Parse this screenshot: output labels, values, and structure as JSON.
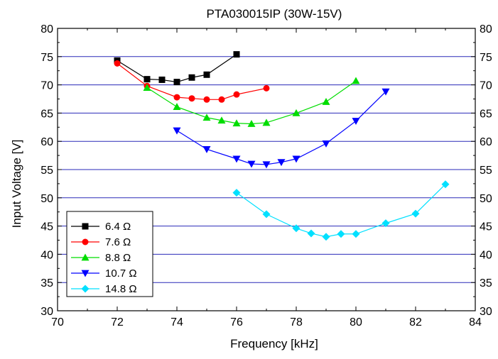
{
  "chart_data": {
    "type": "line",
    "title": "PTA030015IP (30W-15V)",
    "xlabel": "Frequency [kHz]",
    "ylabel": "Input Voltage [V]",
    "xlim": [
      70,
      84
    ],
    "ylim": [
      30,
      80
    ],
    "x_ticks": [
      "70",
      "72",
      "74",
      "76",
      "78",
      "80",
      "82",
      "84"
    ],
    "y_ticks": [
      "30",
      "35",
      "40",
      "45",
      "50",
      "55",
      "60",
      "65",
      "70",
      "75",
      "80"
    ],
    "y_ticks_right": [
      "30",
      "35",
      "40",
      "45",
      "50",
      "55",
      "60",
      "65",
      "70",
      "75",
      "80"
    ],
    "grid": "horizontal lines at each y tick (blue)",
    "legend_position": "bottom-left",
    "series": [
      {
        "name": "6.4  Ω",
        "color": "#000000",
        "marker": "square",
        "points": [
          [
            72,
            74.3
          ],
          [
            73,
            71.0
          ],
          [
            73.5,
            70.9
          ],
          [
            74,
            70.5
          ],
          [
            74.5,
            71.3
          ],
          [
            75,
            71.8
          ],
          [
            76,
            75.4
          ]
        ]
      },
      {
        "name": "7.6  Ω",
        "color": "#ff0000",
        "marker": "circle",
        "points": [
          [
            72,
            73.8
          ],
          [
            73,
            69.8
          ],
          [
            74,
            67.8
          ],
          [
            74.5,
            67.6
          ],
          [
            75,
            67.4
          ],
          [
            75.5,
            67.4
          ],
          [
            76,
            68.3
          ],
          [
            77,
            69.4
          ]
        ]
      },
      {
        "name": "8.8  Ω",
        "color": "#00dd00",
        "marker": "triangle-up",
        "points": [
          [
            73,
            69.5
          ],
          [
            74,
            66.1
          ],
          [
            75,
            64.2
          ],
          [
            75.5,
            63.7
          ],
          [
            76,
            63.2
          ],
          [
            76.5,
            63.1
          ],
          [
            77,
            63.3
          ],
          [
            78,
            65.0
          ],
          [
            79,
            67.0
          ],
          [
            80,
            70.7
          ]
        ]
      },
      {
        "name": "10.7  Ω",
        "color": "#0000ff",
        "marker": "triangle-down",
        "points": [
          [
            74,
            61.9
          ],
          [
            75,
            58.6
          ],
          [
            76,
            56.9
          ],
          [
            76.5,
            56.0
          ],
          [
            77,
            55.9
          ],
          [
            77.5,
            56.3
          ],
          [
            78,
            56.9
          ],
          [
            79,
            59.6
          ],
          [
            80,
            63.6
          ],
          [
            81,
            68.8
          ]
        ]
      },
      {
        "name": "14.8  Ω",
        "color": "#00e0ff",
        "marker": "diamond",
        "points": [
          [
            76,
            50.9
          ],
          [
            77,
            47.1
          ],
          [
            78,
            44.6
          ],
          [
            78.5,
            43.7
          ],
          [
            79,
            43.1
          ],
          [
            79.5,
            43.6
          ],
          [
            80,
            43.6
          ],
          [
            81,
            45.5
          ],
          [
            82,
            47.2
          ],
          [
            83,
            52.4
          ]
        ]
      }
    ]
  }
}
